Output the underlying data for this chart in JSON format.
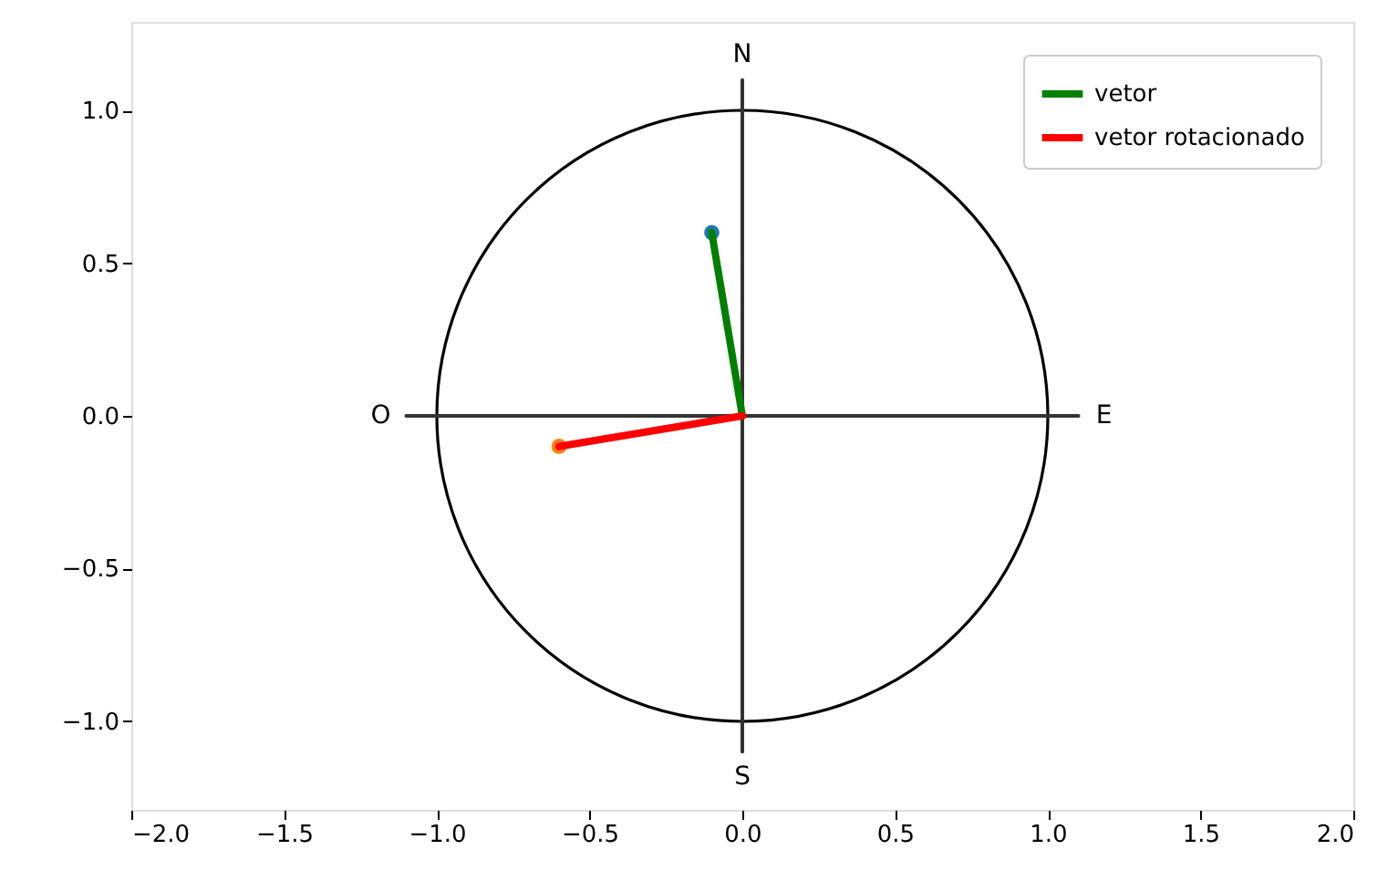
{
  "chart_data": {
    "type": "line",
    "xlim": [
      -2,
      2
    ],
    "ylim": [
      -1.29,
      1.29
    ],
    "xticks": [
      {
        "value": -2,
        "label": "−2.0"
      },
      {
        "value": -1.5,
        "label": "−1.5"
      },
      {
        "value": -1,
        "label": "−1.0"
      },
      {
        "value": -0.5,
        "label": "−0.5"
      },
      {
        "value": 0,
        "label": "0.0"
      },
      {
        "value": 0.5,
        "label": "0.5"
      },
      {
        "value": 1,
        "label": "1.0"
      },
      {
        "value": 1.5,
        "label": "1.5"
      },
      {
        "value": 2,
        "label": "2.0"
      }
    ],
    "yticks": [
      {
        "value": -1,
        "label": "−1.0"
      },
      {
        "value": -0.5,
        "label": "−0.5"
      },
      {
        "value": 0,
        "label": "0.0"
      },
      {
        "value": 0.5,
        "label": "0.5"
      },
      {
        "value": 1,
        "label": "1.0"
      }
    ],
    "grid": false,
    "legend": "top right",
    "series": [
      {
        "color": "#333333",
        "x": [
          -1.1,
          1.1
        ],
        "values": [
          0,
          0
        ]
      },
      {
        "color": "#333333",
        "x": [
          0,
          0
        ],
        "values": [
          -1.1,
          1.1
        ]
      },
      {
        "type": "scatter",
        "color": "#1f77b4",
        "x": [
          -0.1
        ],
        "values": [
          0.6
        ]
      },
      {
        "type": "scatter",
        "color": "#ff7f0e",
        "x": [
          -0.6
        ],
        "values": [
          -0.1
        ]
      },
      {
        "name": "vetor",
        "color": "#008000",
        "x": [
          0,
          -0.1
        ],
        "values": [
          0,
          0.6
        ]
      },
      {
        "name": "vetor rotacionado",
        "color": "#ff0000",
        "x": [
          0,
          -0.6
        ],
        "values": [
          0,
          -0.1
        ]
      }
    ],
    "annotations": [
      {
        "text": "N",
        "x": 0,
        "y": 1.1
      },
      {
        "text": "S",
        "x": 0,
        "y": -1.1
      },
      {
        "text": "E",
        "x": 1.1,
        "y": 0
      },
      {
        "text": "O",
        "x": -1.1,
        "y": 0
      }
    ]
  }
}
